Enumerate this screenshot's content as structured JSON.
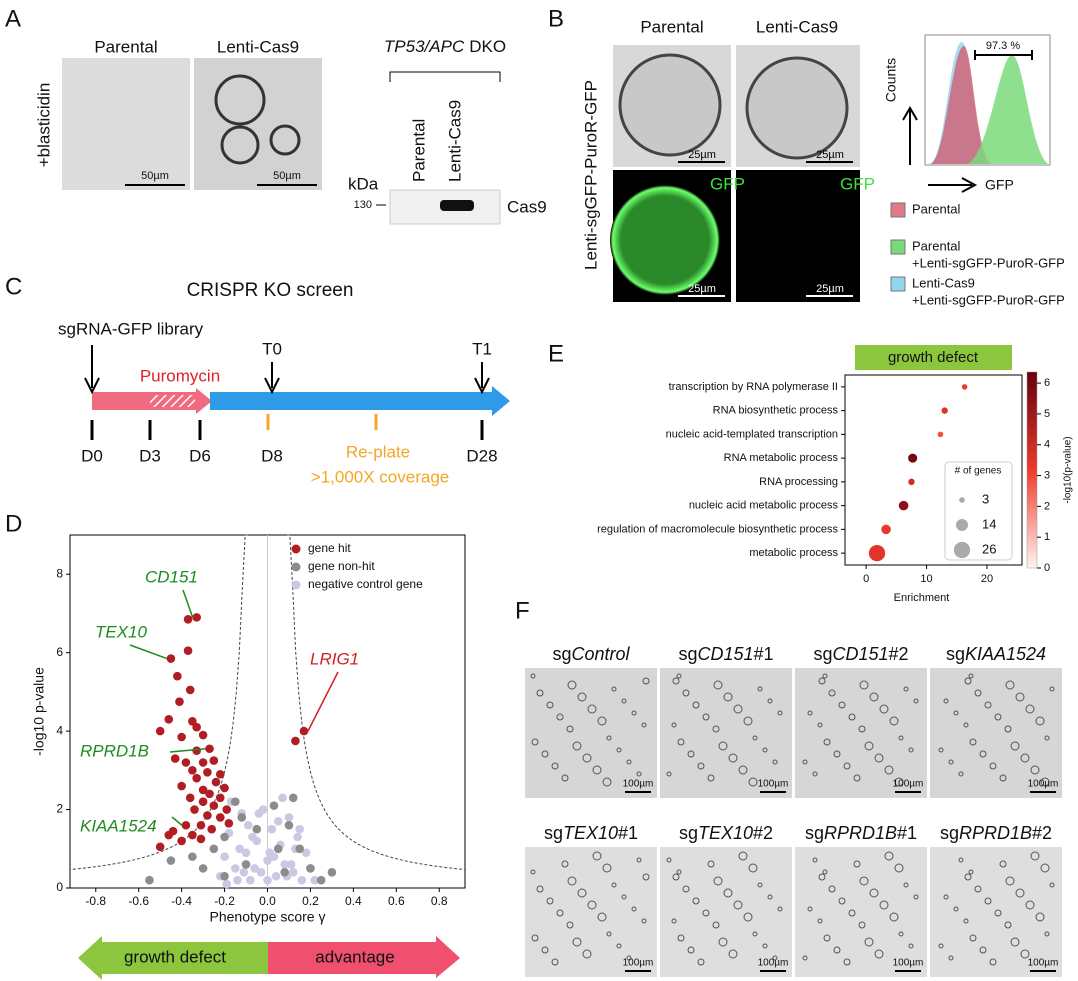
{
  "panel_a": {
    "letter": "A",
    "cols": [
      "Parental",
      "Lenti-Cas9"
    ],
    "row_label": "+blasticidin",
    "scale": "50µm",
    "blot_title": {
      "italic": "TP53/APC",
      "rest": "DKO"
    },
    "lanes": [
      "Parental",
      "Lenti-Cas9"
    ],
    "kda": "kDa",
    "marker": "130",
    "protein": "Cas9"
  },
  "panel_b": {
    "letter": "B",
    "cols": [
      "Parental",
      "Lenti-Cas9"
    ],
    "row_label": "Lenti-sgGFP-PuroR-GFP",
    "scale": "25µm",
    "gfp": "GFP",
    "hist_pct": "97.3 %",
    "hist_y": "Counts",
    "hist_x": "GFP",
    "legend": [
      {
        "name": "Parental",
        "color": "#e07a88"
      },
      {
        "name": "Parental",
        "note": "+Lenti-sgGFP-PuroR-GFP",
        "color": "#7ad97a"
      },
      {
        "name": "Lenti-Cas9",
        "note": "+Lenti-sgGFP-PuroR-GFP",
        "color": "#8fd6ee"
      }
    ]
  },
  "panel_c": {
    "letter": "C",
    "title": "CRISPR KO screen",
    "library": "sgRNA-GFP library",
    "drug": "Puromycin",
    "timepoints": [
      "T0",
      "T1"
    ],
    "days": [
      "D0",
      "D3",
      "D6",
      "D8",
      "D28"
    ],
    "replate": "Re-plate",
    "coverage": ">1,000X coverage"
  },
  "panel_d_extra": {
    "letter": "D",
    "arrows": [
      "growth defect",
      "advantage"
    ]
  },
  "panel_e_extra": {
    "letter": "E"
  },
  "panel_f": {
    "letter": "F",
    "scale": "100µm",
    "labels": [
      [
        "sg",
        "Control"
      ],
      [
        "sg",
        "CD151",
        "#1"
      ],
      [
        "sg",
        "CD151",
        "#2"
      ],
      [
        "sg",
        "KIAA1524"
      ],
      [
        "sg",
        "TEX10",
        "#1"
      ],
      [
        "sg",
        "TEX10",
        "#2"
      ],
      [
        "sg",
        "RPRD1B",
        "#1"
      ],
      [
        "sg",
        "RPRD1B",
        "#2"
      ]
    ]
  },
  "chart_data": [
    {
      "type": "scatter",
      "xlabel": "Phenotype score γ",
      "ylabel": "-log10 p-value",
      "xlim": [
        -0.92,
        0.92
      ],
      "ylim": [
        0,
        9.0
      ],
      "xticks": [
        -0.8,
        -0.6,
        -0.4,
        -0.2,
        {
          "value": 0,
          "label": "0.0"
        },
        0.2,
        0.4,
        0.6,
        0.8
      ],
      "yticks": [
        0,
        2,
        4,
        6,
        8
      ],
      "series": [
        {
          "name": "negative control gene",
          "color": "#c9c9e3",
          "x": [
            -0.22,
            -0.2,
            -0.18,
            -0.15,
            -0.12,
            -0.1,
            -0.08,
            -0.05,
            -0.03,
            0,
            0.02,
            0.04,
            0.06,
            0.08,
            0.1,
            0.12,
            0.14,
            0.16,
            0.18,
            0.2,
            0.22,
            -0.17,
            -0.13,
            -0.09,
            -0.06,
            -0.02,
            0.01,
            0.05,
            0.09,
            0.13,
            -0.14,
            -0.07,
            0.03,
            0.07,
            0.11,
            -0.19,
            -0.11,
            0.15,
            -0.04,
            0.0
          ],
          "y": [
            0.3,
            0.8,
            1.4,
            0.5,
            1.9,
            0.9,
            0.2,
            1.2,
            0.4,
            0.7,
            1.5,
            0.3,
            1.1,
            0.6,
            1.8,
            0.4,
            1.3,
            0.2,
            0.9,
            0.5,
            0.2,
            2.2,
            1.0,
            1.6,
            0.5,
            2.0,
            0.9,
            1.7,
            0.3,
            1.0,
            0.2,
            1.3,
            0.8,
            2.3,
            0.6,
            0.1,
            0.4,
            1.5,
            1.9,
            0.2
          ]
        },
        {
          "name": "gene non-hit",
          "color": "#8c8c8c",
          "x": [
            -0.45,
            -0.35,
            -0.3,
            -0.25,
            -0.2,
            -0.15,
            -0.12,
            0.05,
            0.1,
            0.15,
            0.2,
            -0.2,
            0.08,
            0.3,
            -0.55,
            -0.1,
            0.03,
            0.12,
            -0.05,
            0.25
          ],
          "y": [
            0.7,
            0.8,
            0.5,
            1.0,
            1.3,
            2.2,
            1.8,
            1.0,
            1.6,
            1.0,
            0.5,
            0.3,
            0.4,
            0.4,
            0.2,
            0.6,
            2.1,
            2.3,
            1.5,
            0.2
          ]
        },
        {
          "name": "gene hit",
          "color": "#b01e23",
          "x": [
            -0.33,
            -0.37,
            -0.45,
            -0.37,
            -0.42,
            -0.36,
            -0.41,
            -0.46,
            -0.35,
            -0.33,
            -0.5,
            -0.3,
            -0.4,
            -0.27,
            -0.33,
            -0.43,
            -0.38,
            -0.25,
            -0.3,
            -0.35,
            -0.28,
            -0.22,
            -0.33,
            -0.24,
            -0.4,
            -0.3,
            -0.2,
            -0.27,
            -0.36,
            -0.22,
            -0.3,
            -0.25,
            -0.19,
            -0.34,
            -0.28,
            -0.22,
            -0.38,
            -0.31,
            -0.26,
            -0.44,
            -0.35,
            -0.31,
            -0.4,
            -0.5,
            -0.46,
            0.17,
            0.13,
            -0.18
          ],
          "y": [
            6.9,
            6.85,
            5.85,
            6.05,
            5.4,
            5.05,
            4.75,
            4.3,
            4.25,
            4.1,
            4.0,
            3.9,
            3.85,
            3.55,
            3.5,
            3.3,
            3.2,
            3.25,
            3.2,
            3.0,
            2.95,
            2.9,
            2.8,
            2.7,
            2.6,
            2.5,
            2.55,
            2.4,
            2.3,
            2.3,
            2.2,
            2.1,
            2.0,
            2.0,
            1.85,
            1.8,
            1.6,
            1.6,
            1.5,
            1.45,
            1.35,
            1.25,
            1.2,
            1.05,
            1.35,
            4.0,
            3.75,
            1.65
          ]
        }
      ],
      "annotations": [
        {
          "text": "CD151",
          "x": -0.33,
          "y": 6.9,
          "color": "#1e8c1e"
        },
        {
          "text": "TEX10",
          "x": -0.45,
          "y": 5.85,
          "color": "#1e8c1e"
        },
        {
          "text": "RPRD1B",
          "x": -0.27,
          "y": 3.55,
          "color": "#1e8c1e"
        },
        {
          "text": "KIAA1524",
          "x": -0.38,
          "y": 1.6,
          "color": "#1e8c1e"
        },
        {
          "text": "LRIG1",
          "x": 0.17,
          "y": 4.0,
          "color": "#d42020"
        }
      ]
    },
    {
      "type": "dot",
      "title": "growth defect",
      "xlabel": "Enrichment",
      "categories": [
        "transcription by RNA polymerase II",
        "RNA biosynthetic process",
        "nucleic acid-templated transcription",
        "RNA metabolic process",
        "RNA processing",
        "nucleic acid metabolic process",
        "regulation of macromolecule biosynthetic process",
        "metabolic process"
      ],
      "values": [
        16.3,
        13,
        12.3,
        7.7,
        7.5,
        6.2,
        3.3,
        1.8
      ],
      "sizes": [
        3,
        4,
        3,
        8,
        4,
        9,
        9,
        26
      ],
      "log_p": [
        3.2,
        3.5,
        2.8,
        6.0,
        4.0,
        5.5,
        3.3,
        3.5
      ],
      "xlim": [
        -3.5,
        25.8
      ],
      "xticks": [
        0,
        10,
        20
      ],
      "clim": [
        0,
        6.36
      ],
      "cticks": [
        0,
        1,
        2,
        3,
        4,
        5,
        6
      ],
      "clabel": "-log10(p-value)",
      "size_legend": {
        "title": "# of genes",
        "values": [
          3,
          14,
          26
        ]
      }
    }
  ]
}
